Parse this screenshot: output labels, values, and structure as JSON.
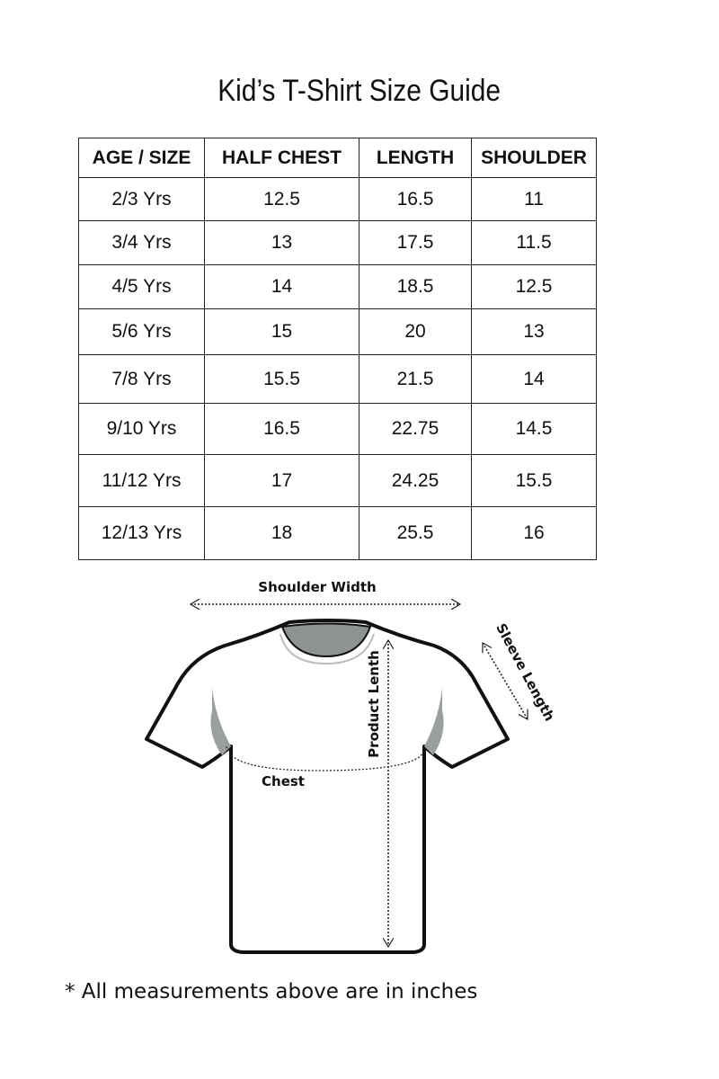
{
  "title": "Kid’s T-Shirt Size Guide",
  "table": {
    "headers": [
      "AGE / SIZE",
      "HALF CHEST",
      "LENGTH",
      "SHOULDER"
    ],
    "rows": [
      [
        "2/3 Yrs",
        "12.5",
        "16.5",
        "11"
      ],
      [
        "3/4 Yrs",
        "13",
        "17.5",
        "11.5"
      ],
      [
        "4/5 Yrs",
        "14",
        "18.5",
        "12.5"
      ],
      [
        "5/6 Yrs",
        "15",
        "20",
        "13"
      ],
      [
        "7/8 Yrs",
        "15.5",
        "21.5",
        "14"
      ],
      [
        "9/10 Yrs",
        "16.5",
        "22.75",
        "14.5"
      ],
      [
        "11/12 Yrs",
        "17",
        "24.25",
        "15.5"
      ],
      [
        "12/13 Yrs",
        "18",
        "25.5",
        "16"
      ]
    ]
  },
  "diagram": {
    "shoulder_label": "Shoulder Width",
    "length_label": "Product Lenth",
    "sleeve_label": "Sleeve Length",
    "chest_label": "Chest"
  },
  "footnote": "* All measurements above are in inches"
}
